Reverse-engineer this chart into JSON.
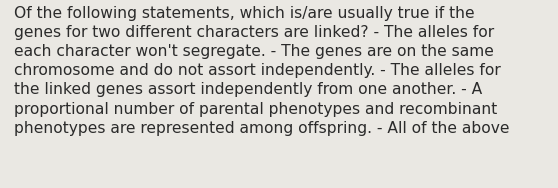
{
  "text": "Of the following statements, which is/are usually true if the genes for two different characters are linked? - The alleles for each character won't segregate. - The genes are on the same chromosome and do not assort independently. - The alleles for the linked genes assort independently from one another. - A proportional number of parental phenotypes and recombinant phenotypes are represented among offspring. - All of the above",
  "wrapped_text": "Of the following statements, which is/are usually true if the\ngenes for two different characters are linked? - The alleles for\neach character won't segregate. - The genes are on the same\nchromosome and do not assort independently. - The alleles for\nthe linked genes assort independently from one another. - A\nproportional number of parental phenotypes and recombinant\nphenotypes are represented among offspring. - All of the above",
  "background_color": "#eae8e3",
  "text_color": "#2b2b2b",
  "font_size": 11.2,
  "fig_width": 5.58,
  "fig_height": 1.88,
  "dpi": 100
}
